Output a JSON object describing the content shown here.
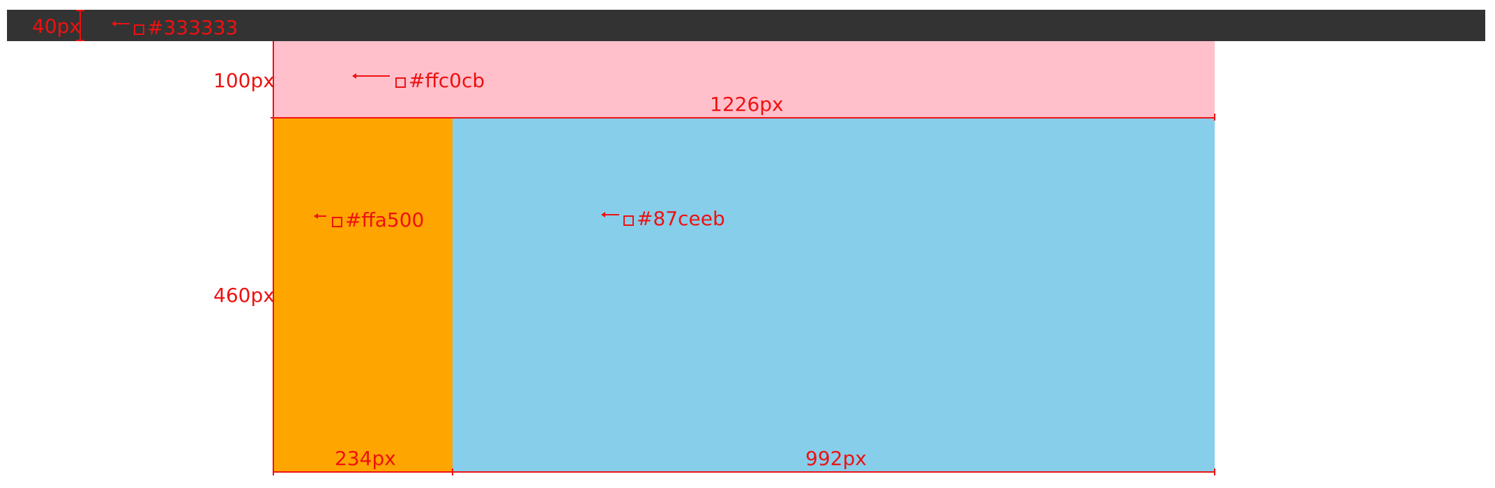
{
  "blocks": {
    "header": {
      "color": "#333333",
      "height_label": "40px",
      "color_label": "#333333"
    },
    "banner": {
      "color": "#ffc0cb",
      "height_label": "100px",
      "width_label": "1226px",
      "color_label": "#ffc0cb"
    },
    "sidebar": {
      "color": "#ffa500",
      "width_label": "234px",
      "color_label": "#ffa500"
    },
    "content": {
      "color": "#87ceeb",
      "width_label": "992px",
      "color_label": "#87ceeb"
    },
    "body_height_label": "460px"
  }
}
